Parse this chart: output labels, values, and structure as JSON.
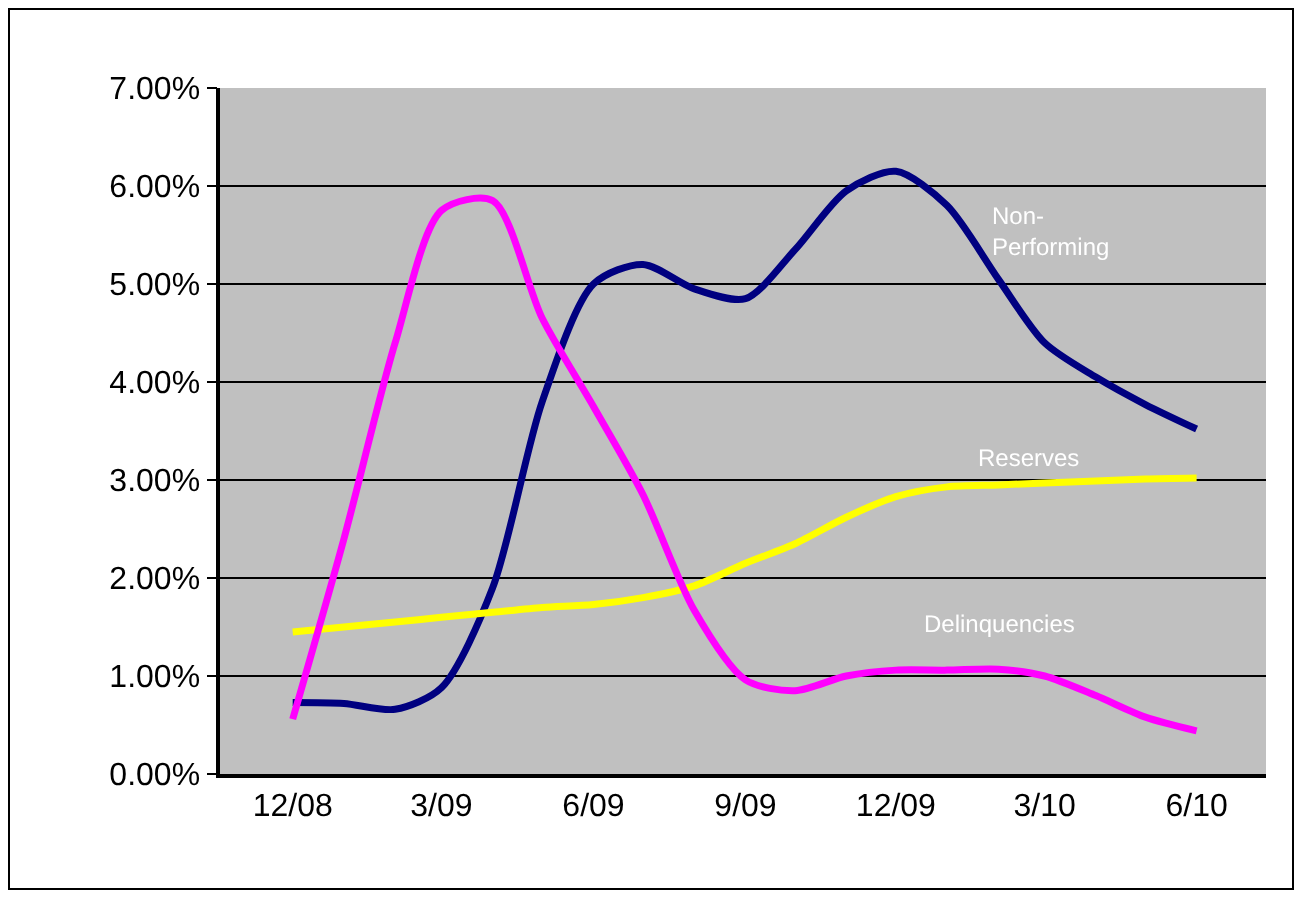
{
  "chart_data": {
    "type": "line",
    "x": [
      "2008-12",
      "2009-01",
      "2009-02",
      "2009-03",
      "2009-04",
      "2009-05",
      "2009-06",
      "2009-07",
      "2009-08",
      "2009-09",
      "2009-10",
      "2009-11",
      "2009-12",
      "2010-01",
      "2010-02",
      "2010-03",
      "2010-04",
      "2010-05",
      "2010-06"
    ],
    "series": [
      {
        "name": "Non-Performing",
        "color": "#000080",
        "values": [
          0.73,
          0.72,
          0.66,
          0.88,
          1.9,
          3.8,
          5.0,
          5.2,
          4.95,
          4.85,
          5.35,
          5.95,
          6.15,
          5.8,
          5.05,
          4.4,
          4.05,
          3.77,
          3.52
        ]
      },
      {
        "name": "Reserves",
        "color": "#ffff00",
        "values": [
          1.45,
          1.5,
          1.55,
          1.6,
          1.65,
          1.7,
          1.73,
          1.8,
          1.92,
          2.15,
          2.35,
          2.62,
          2.83,
          2.93,
          2.95,
          2.97,
          2.99,
          3.01,
          3.02
        ]
      },
      {
        "name": "Delinquencies",
        "color": "#ff00ff",
        "values": [
          0.56,
          2.4,
          4.4,
          5.75,
          5.85,
          4.65,
          3.75,
          2.85,
          1.67,
          0.96,
          0.85,
          1.0,
          1.06,
          1.06,
          1.07,
          1.0,
          0.8,
          0.58,
          0.44
        ]
      }
    ],
    "xlim": [
      "2008-10-18",
      "2010-07-13"
    ],
    "xticks": [
      {
        "value": "2008-12",
        "label": "12/08"
      },
      {
        "value": "2009-03",
        "label": "3/09"
      },
      {
        "value": "2009-06",
        "label": "6/09"
      },
      {
        "value": "2009-09",
        "label": "9/09"
      },
      {
        "value": "2009-12",
        "label": "12/09"
      },
      {
        "value": "2010-03",
        "label": "3/10"
      },
      {
        "value": "2010-06",
        "label": "6/10"
      }
    ],
    "ylim": [
      0,
      7
    ],
    "yticks": [
      {
        "value": 0,
        "label": "0.00%"
      },
      {
        "value": 1,
        "label": "1.00%"
      },
      {
        "value": 2,
        "label": "2.00%"
      },
      {
        "value": 3,
        "label": "3.00%"
      },
      {
        "value": 4,
        "label": "4.00%"
      },
      {
        "value": 5,
        "label": "5.00%"
      },
      {
        "value": 6,
        "label": "6.00%"
      },
      {
        "value": 7,
        "label": "7.00%"
      }
    ],
    "grid": "y",
    "legend": false,
    "marker": "none",
    "line_style": "solid"
  }
}
